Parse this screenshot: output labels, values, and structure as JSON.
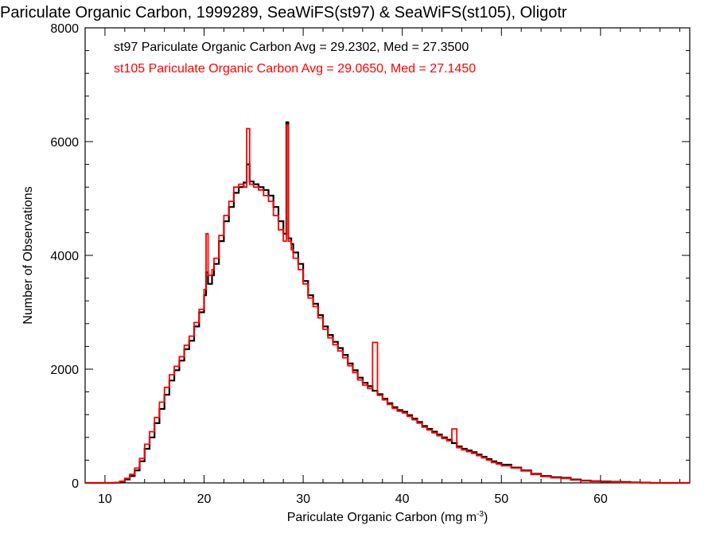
{
  "chart_data": {
    "type": "line",
    "title": "Pariculate Organic Carbon, 1999289, SeaWiFS(st97) & SeaWiFS(st105), Oligotr",
    "xlabel": "Pariculate Organic Carbon (mg m",
    "xlabel_sup": "-3",
    "xlabel_close": ")",
    "ylabel": "Number of Observations",
    "xlim": [
      8,
      69
    ],
    "ylim": [
      0,
      8000
    ],
    "x_ticks": [
      10,
      20,
      30,
      40,
      50,
      60
    ],
    "y_ticks": [
      0,
      2000,
      4000,
      6000,
      8000
    ],
    "grid": false,
    "annotations": [
      {
        "text": "st97 Pariculate Organic Carbon Avg = 29.2302, Med = 27.3500",
        "color": "#000000"
      },
      {
        "text": "st105 Pariculate Organic Carbon Avg = 29.0650, Med = 27.1450",
        "color": "#ff0000"
      }
    ],
    "series": [
      {
        "color": "#000000",
        "x": [
          8,
          10,
          11,
          11.5,
          12,
          12.5,
          13,
          13.5,
          14,
          14.5,
          15,
          15.5,
          16,
          16.5,
          17,
          17.5,
          18,
          18.5,
          19,
          19.5,
          20,
          20.2,
          20.4,
          20.8,
          21,
          21.5,
          22,
          22.5,
          23,
          23.5,
          24,
          24.3,
          24.6,
          25,
          25.5,
          26,
          26.5,
          27,
          27.5,
          28,
          28.3,
          28.5,
          28.8,
          29,
          29.5,
          30,
          30.5,
          31,
          31.5,
          32,
          32.5,
          33,
          33.5,
          34,
          34.5,
          35,
          35.5,
          36,
          36.5,
          37,
          37.5,
          38,
          38.5,
          39,
          39.5,
          40,
          40.5,
          41,
          41.5,
          42,
          42.5,
          43,
          43.5,
          44,
          44.5,
          45,
          45.5,
          46,
          46.5,
          47,
          47.5,
          48,
          48.5,
          49,
          49.5,
          50,
          51,
          52,
          53,
          54,
          55,
          56,
          57,
          58,
          59,
          60,
          61,
          62,
          63,
          64,
          65,
          66,
          67,
          68,
          69
        ],
        "y": [
          0,
          0,
          5,
          20,
          60,
          120,
          220,
          380,
          600,
          800,
          1050,
          1300,
          1550,
          1800,
          1980,
          2150,
          2350,
          2500,
          2750,
          3000,
          3300,
          3700,
          3500,
          3650,
          3850,
          4250,
          4600,
          4850,
          5100,
          5200,
          5280,
          5600,
          5300,
          5250,
          5200,
          5150,
          5050,
          4850,
          4600,
          4380,
          6340,
          4300,
          4200,
          4050,
          3850,
          3550,
          3300,
          3150,
          2950,
          2750,
          2600,
          2480,
          2370,
          2250,
          2100,
          1980,
          1850,
          1760,
          1700,
          1620,
          1560,
          1480,
          1400,
          1330,
          1280,
          1250,
          1190,
          1130,
          1070,
          1000,
          950,
          900,
          850,
          800,
          760,
          700,
          640,
          600,
          570,
          540,
          500,
          460,
          420,
          380,
          350,
          320,
          270,
          220,
          160,
          120,
          100,
          90,
          60,
          40,
          30,
          25,
          20,
          15,
          10,
          5,
          0,
          0,
          0,
          0,
          0
        ]
      },
      {
        "color": "#ff0000",
        "x": [
          8,
          10,
          11,
          11.5,
          12,
          12.5,
          13,
          13.5,
          14,
          14.5,
          15,
          15.5,
          16,
          16.5,
          17,
          17.5,
          18,
          18.5,
          19,
          19.5,
          20,
          20.2,
          20.4,
          20.8,
          21,
          21.5,
          22,
          22.5,
          23,
          23.5,
          24,
          24.3,
          24.6,
          25,
          25.5,
          26,
          26.5,
          27,
          27.5,
          28,
          28.3,
          28.5,
          28.8,
          29,
          29.5,
          30,
          30.5,
          31,
          31.5,
          32,
          32.5,
          33,
          33.5,
          34,
          34.5,
          35,
          35.5,
          36,
          36.5,
          37,
          37.5,
          38,
          38.5,
          39,
          39.5,
          40,
          40.5,
          41,
          41.5,
          42,
          42.5,
          43,
          43.5,
          44,
          44.5,
          45,
          45.5,
          46,
          46.5,
          47,
          47.5,
          48,
          48.5,
          49,
          49.5,
          50,
          51,
          52,
          53,
          54,
          55,
          56,
          57,
          58,
          59,
          60,
          61,
          62,
          63,
          64,
          65,
          66,
          67,
          68,
          69
        ],
        "y": [
          0,
          0,
          8,
          30,
          80,
          150,
          260,
          430,
          680,
          900,
          1150,
          1420,
          1680,
          1900,
          2050,
          2220,
          2420,
          2580,
          2820,
          3050,
          3400,
          4380,
          3650,
          3750,
          3950,
          4350,
          4700,
          4950,
          5200,
          5250,
          5200,
          6230,
          5250,
          5200,
          5150,
          5050,
          4950,
          4700,
          4450,
          4250,
          6290,
          4250,
          4100,
          3950,
          3750,
          3500,
          3250,
          3100,
          2900,
          2700,
          2550,
          2430,
          2320,
          2200,
          2060,
          1940,
          1810,
          1720,
          1660,
          2470,
          1540,
          1460,
          1380,
          1310,
          1260,
          1230,
          1170,
          1110,
          1050,
          980,
          930,
          880,
          830,
          780,
          740,
          950,
          620,
          580,
          550,
          520,
          480,
          440,
          400,
          360,
          330,
          300,
          260,
          210,
          150,
          110,
          90,
          80,
          50,
          35,
          25,
          20,
          15,
          10,
          8,
          4,
          0,
          0,
          0,
          0,
          0
        ]
      }
    ]
  }
}
